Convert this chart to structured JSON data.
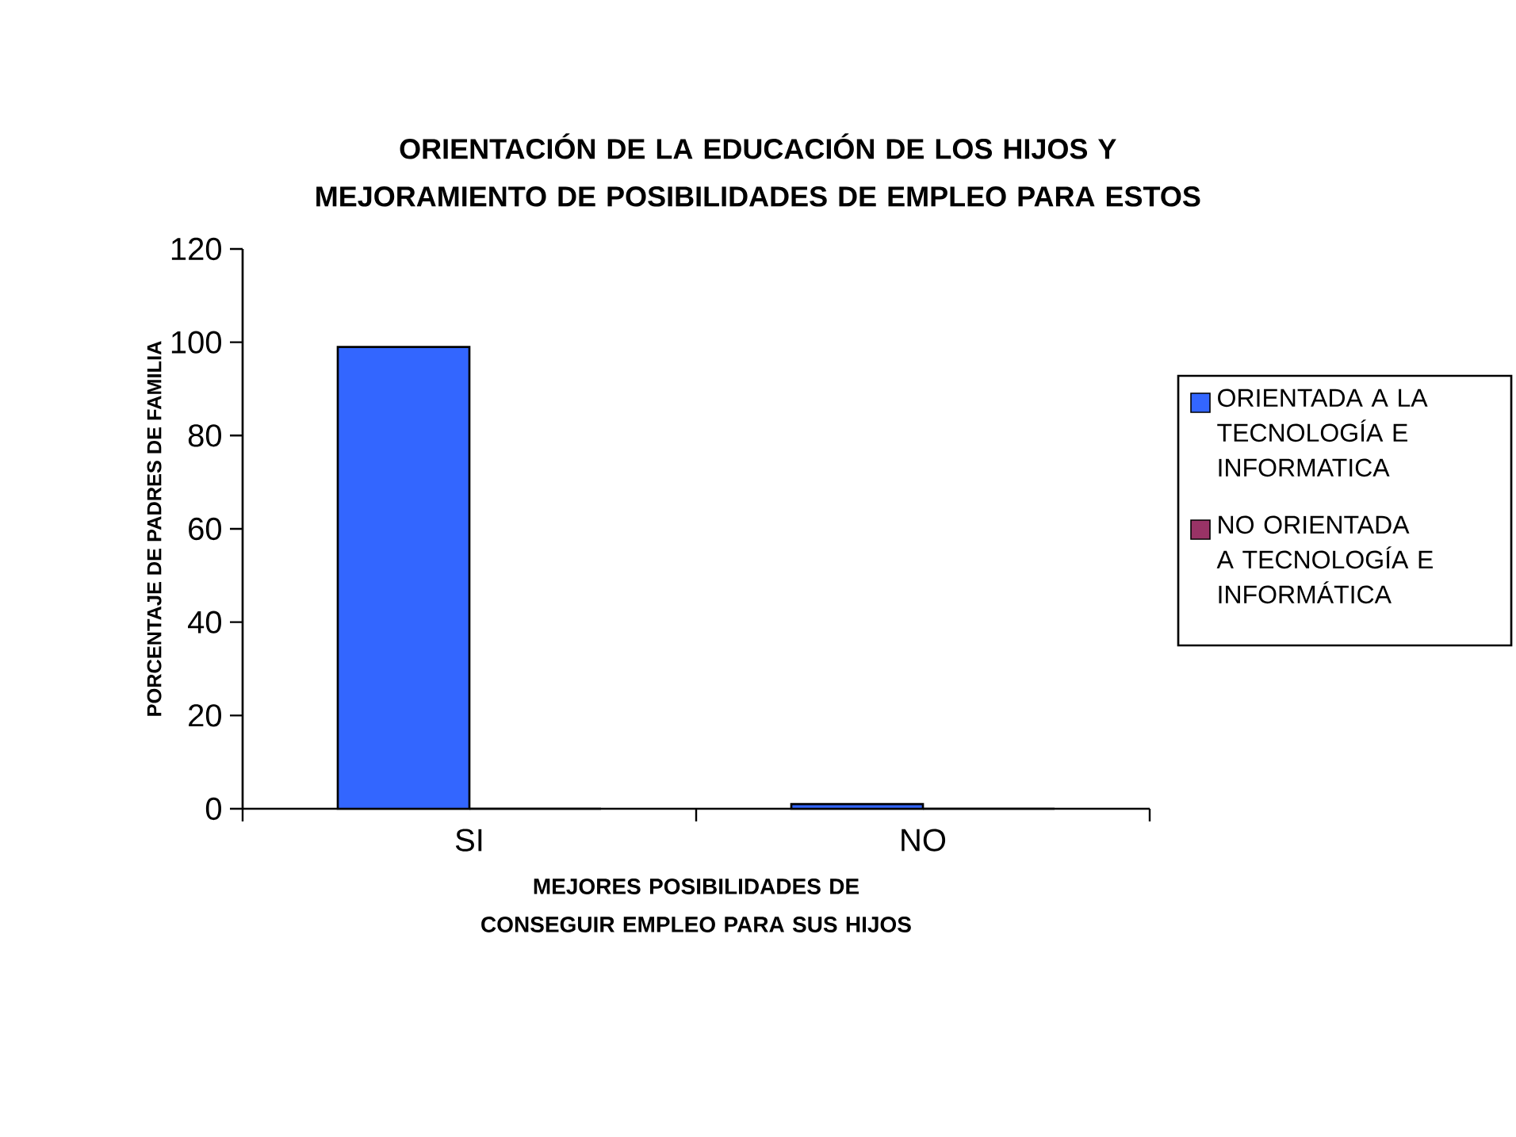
{
  "chart_data": {
    "type": "bar",
    "title": "ORIENTACIÓN DE LA EDUCACIÓN DE LOS HIJOS Y MEJORAMIENTO DE POSIBILIDADES DE EMPLEO PARA ESTOS",
    "xlabel": "MEJORES POSIBILIDADES DE CONSEGUIR EMPLEO PARA SUS HIJOS",
    "ylabel": "PORCENTAJE DE PADRES DE FAMILIA",
    "categories": [
      "SI",
      "NO"
    ],
    "series": [
      {
        "name": "ORIENTADA A LA TECNOLOGÍA E INFORMATICA",
        "color": "#3366ff",
        "values": [
          99,
          1
        ]
      },
      {
        "name": "NO ORIENTADA A TECNOLOGÍA E INFORMÁTICA",
        "color": "#993366",
        "values": [
          0,
          0
        ]
      }
    ],
    "ylim": [
      0,
      120
    ],
    "yticks": [
      0,
      20,
      40,
      60,
      80,
      100,
      120
    ],
    "legend": "right"
  }
}
